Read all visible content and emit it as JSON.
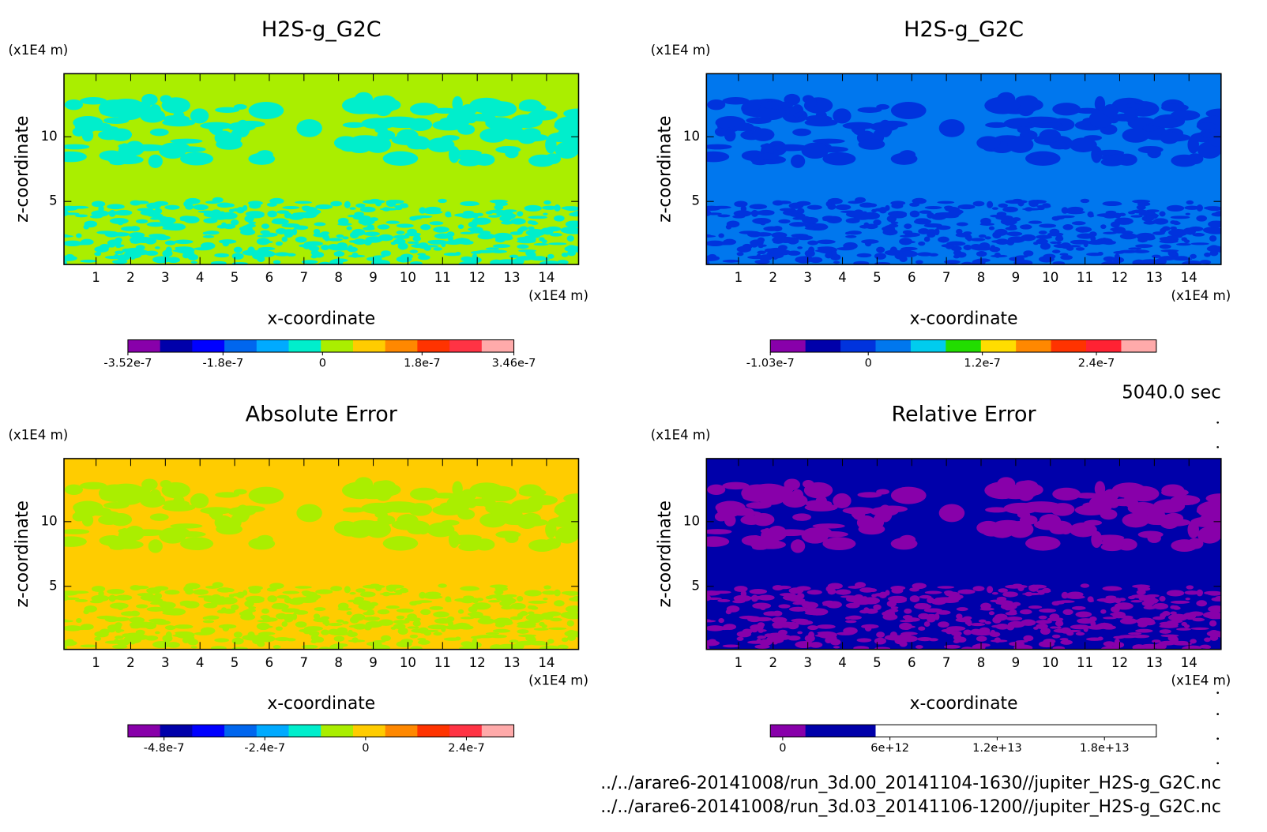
{
  "chart_data": [
    {
      "type": "contour",
      "title": "H2S-g_G2C",
      "x_label": "x-coordinate",
      "y_label": "z-coordinate",
      "x_unit": "(x1E4 m)",
      "y_unit": "(x1E4 m)",
      "xlim": [
        0.075,
        14.925
      ],
      "ylim": [
        0.125,
        14.875
      ],
      "xticks": [
        1,
        2,
        3,
        4,
        5,
        6,
        7,
        8,
        9,
        10,
        11,
        12,
        13,
        14
      ],
      "yticks": [
        5,
        10
      ],
      "field_color": "#aaee00",
      "pattern_color": "#00eecc",
      "colorbar": {
        "lim": [
          -3.52e-07,
          3.46e-07
        ],
        "ticks": [
          -3.52e-07,
          -1.8e-07,
          0,
          1.8e-07,
          3.46e-07
        ],
        "colors": [
          "#8800aa",
          "#0000aa",
          "#0000ff",
          "#0066ee",
          "#00aaff",
          "#00eecc",
          "#aaee00",
          "#ffcc00",
          "#ff8800",
          "#ff3300",
          "#ff3344",
          "#ffaaaa"
        ]
      }
    },
    {
      "type": "contour",
      "title": "H2S-g_G2C",
      "x_label": "x-coordinate",
      "y_label": "z-coordinate",
      "x_unit": "(x1E4 m)",
      "y_unit": "(x1E4 m)",
      "xlim": [
        0.075,
        14.925
      ],
      "ylim": [
        0.125,
        14.875
      ],
      "xticks": [
        1,
        2,
        3,
        4,
        5,
        6,
        7,
        8,
        9,
        10,
        11,
        12,
        13,
        14
      ],
      "yticks": [
        5,
        10
      ],
      "field_color": "#0077ee",
      "pattern_color": "#0033dd",
      "colorbar": {
        "lim": [
          -1.03e-07,
          3.03e-07
        ],
        "ticks": [
          -1.03e-07,
          0,
          1.2e-07,
          2.4e-07
        ],
        "colors": [
          "#8800aa",
          "#0000aa",
          "#0033dd",
          "#0077ee",
          "#00ccee",
          "#22dd00",
          "#ffdd00",
          "#ff8800",
          "#ff3300",
          "#ff2233",
          "#ffaaaa"
        ]
      }
    },
    {
      "type": "contour",
      "title": "Absolute Error",
      "x_label": "x-coordinate",
      "y_label": "z-coordinate",
      "x_unit": "(x1E4 m)",
      "y_unit": "(x1E4 m)",
      "xlim": [
        0.075,
        14.925
      ],
      "ylim": [
        0.125,
        14.875
      ],
      "xticks": [
        1,
        2,
        3,
        4,
        5,
        6,
        7,
        8,
        9,
        10,
        11,
        12,
        13,
        14
      ],
      "yticks": [
        5,
        10
      ],
      "field_color": "#ffcc00",
      "pattern_color": "#aaee00",
      "colorbar": {
        "lim": [
          -5.66e-07,
          3.53e-07
        ],
        "ticks": [
          -4.8e-07,
          -2.4e-07,
          0,
          2.4e-07
        ],
        "colors": [
          "#8800aa",
          "#0000aa",
          "#0000ff",
          "#0066ee",
          "#00aaff",
          "#00eecc",
          "#aaee00",
          "#ffcc00",
          "#ff8800",
          "#ff3300",
          "#ff3344",
          "#ffaaaa"
        ]
      }
    },
    {
      "type": "contour",
      "title": "Relative Error",
      "x_label": "x-coordinate",
      "y_label": "z-coordinate",
      "x_unit": "(x1E4 m)",
      "y_unit": "(x1E4 m)",
      "xlim": [
        0.075,
        14.925
      ],
      "ylim": [
        0.125,
        14.875
      ],
      "xticks": [
        1,
        2,
        3,
        4,
        5,
        6,
        7,
        8,
        9,
        10,
        11,
        12,
        13,
        14
      ],
      "yticks": [
        5,
        10
      ],
      "field_color": "#0000aa",
      "pattern_color": "#8800aa",
      "colorbar": {
        "lim": [
          -690000000000.0,
          20900000000000.0
        ],
        "ticks": [
          0,
          {
            "value": 6000000000000.0,
            "label": "6e+12"
          },
          {
            "value": 12000000000000.0,
            "label": "1.2e+13"
          },
          {
            "value": 18000000000000.0,
            "label": "1.8e+13"
          }
        ],
        "colors": [
          "#8800aa",
          "#0000aa",
          "#0000aa",
          "#ffffff",
          "#ffffff",
          "#ffffff",
          "#ffffff",
          "#ffffff",
          "#ffffff",
          "#ffffff",
          "#ffffff"
        ]
      }
    }
  ],
  "time": "5040.0 sec",
  "files": [
    "../../arare6-20141008/run_3d.00_20141104-1630//jupiter_H2S-g_G2C.nc",
    "../../arare6-20141008/run_3d.03_20141106-1200//jupiter_H2S-g_G2C.nc"
  ]
}
